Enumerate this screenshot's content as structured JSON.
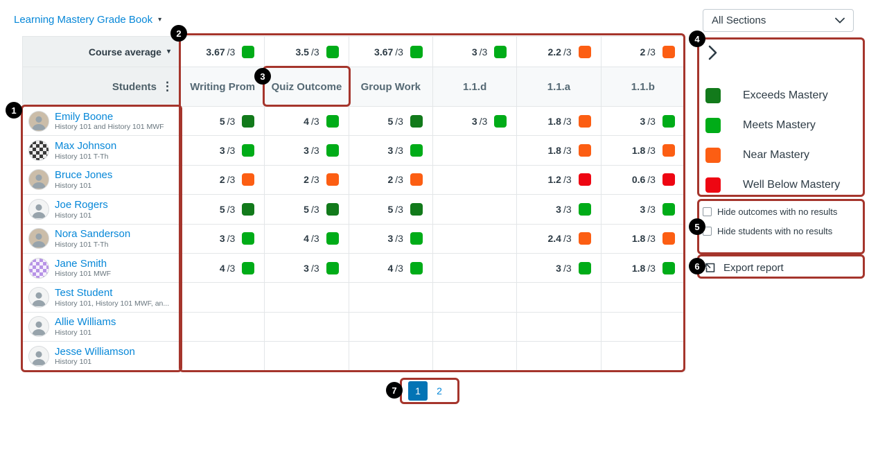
{
  "header": {
    "title": "Learning Mastery Grade Book",
    "sections": "All Sections"
  },
  "icons": {
    "caret_down": "▾",
    "kebab": "⋮"
  },
  "table": {
    "course_average_label": "Course average",
    "students_label": "Students",
    "denominator": "/3",
    "columns": [
      "Writing Prom",
      "Quiz Outcome",
      "Group Work",
      "1.1.d",
      "1.1.a",
      "1.1.b"
    ],
    "course_average": [
      {
        "score": "3.67",
        "level": "meets"
      },
      {
        "score": "3.5",
        "level": "meets"
      },
      {
        "score": "3.67",
        "level": "meets"
      },
      {
        "score": "3",
        "level": "meets"
      },
      {
        "score": "2.2",
        "level": "near"
      },
      {
        "score": "2",
        "level": "near"
      }
    ],
    "students": [
      {
        "name": "Emily Boone",
        "enrollment": "History 101 and History 101 MWF",
        "avatar": "photo",
        "scores": [
          {
            "score": "5",
            "level": "exceeds"
          },
          {
            "score": "4",
            "level": "meets"
          },
          {
            "score": "5",
            "level": "exceeds"
          },
          {
            "score": "3",
            "level": "meets"
          },
          {
            "score": "1.8",
            "level": "near"
          },
          {
            "score": "3",
            "level": "meets"
          }
        ]
      },
      {
        "name": "Max Johnson",
        "enrollment": "History 101 T-Th",
        "avatar": "checker-dark",
        "scores": [
          {
            "score": "3",
            "level": "meets"
          },
          {
            "score": "3",
            "level": "meets"
          },
          {
            "score": "3",
            "level": "meets"
          },
          null,
          {
            "score": "1.8",
            "level": "near"
          },
          {
            "score": "1.8",
            "level": "near"
          }
        ]
      },
      {
        "name": "Bruce Jones",
        "enrollment": "History 101",
        "avatar": "photo",
        "scores": [
          {
            "score": "2",
            "level": "near"
          },
          {
            "score": "2",
            "level": "near"
          },
          {
            "score": "2",
            "level": "near"
          },
          null,
          {
            "score": "1.2",
            "level": "below"
          },
          {
            "score": "0.6",
            "level": "below"
          }
        ]
      },
      {
        "name": "Joe Rogers",
        "enrollment": "History 101",
        "avatar": "person",
        "scores": [
          {
            "score": "5",
            "level": "exceeds"
          },
          {
            "score": "5",
            "level": "exceeds"
          },
          {
            "score": "5",
            "level": "exceeds"
          },
          null,
          {
            "score": "3",
            "level": "meets"
          },
          {
            "score": "3",
            "level": "meets"
          }
        ]
      },
      {
        "name": "Nora Sanderson",
        "enrollment": "History 101 T-Th",
        "avatar": "photo",
        "scores": [
          {
            "score": "3",
            "level": "meets"
          },
          {
            "score": "4",
            "level": "meets"
          },
          {
            "score": "3",
            "level": "meets"
          },
          null,
          {
            "score": "2.4",
            "level": "near"
          },
          {
            "score": "1.8",
            "level": "near"
          }
        ]
      },
      {
        "name": "Jane Smith",
        "enrollment": "History 101 MWF",
        "avatar": "checker-purple",
        "scores": [
          {
            "score": "4",
            "level": "meets"
          },
          {
            "score": "3",
            "level": "meets"
          },
          {
            "score": "4",
            "level": "meets"
          },
          null,
          {
            "score": "3",
            "level": "meets"
          },
          {
            "score": "1.8",
            "level": "meets"
          }
        ]
      },
      {
        "name": "Test Student",
        "enrollment": "History 101, History 101 MWF, an...",
        "avatar": "person",
        "scores": [
          null,
          null,
          null,
          null,
          null,
          null
        ]
      },
      {
        "name": "Allie Williams",
        "enrollment": "History 101",
        "avatar": "person",
        "scores": [
          null,
          null,
          null,
          null,
          null,
          null
        ]
      },
      {
        "name": "Jesse Williamson",
        "enrollment": "History 101",
        "avatar": "person",
        "scores": [
          null,
          null,
          null,
          null,
          null,
          null
        ]
      }
    ]
  },
  "legend": {
    "items": [
      {
        "label": "Exceeds Mastery",
        "level": "exceeds"
      },
      {
        "label": "Meets Mastery",
        "level": "meets"
      },
      {
        "label": "Near Mastery",
        "level": "near"
      },
      {
        "label": "Well Below Mastery",
        "level": "below"
      }
    ]
  },
  "filters": {
    "hide_outcomes": "Hide outcomes with no results",
    "hide_students": "Hide students with no results"
  },
  "export_label": "Export report",
  "pagination": {
    "pages": [
      "1",
      "2"
    ],
    "current": "1"
  },
  "callouts": [
    "1",
    "2",
    "3",
    "4",
    "5",
    "6",
    "7"
  ],
  "colors": {
    "exceeds_mastery": "#127A1B",
    "meets_mastery": "#00AC18",
    "near_mastery": "#FC5E13",
    "well_below_mastery": "#EE0612",
    "link": "#0687D8",
    "active_page_bg": "#0374B5",
    "callout_border": "#A5352C"
  }
}
